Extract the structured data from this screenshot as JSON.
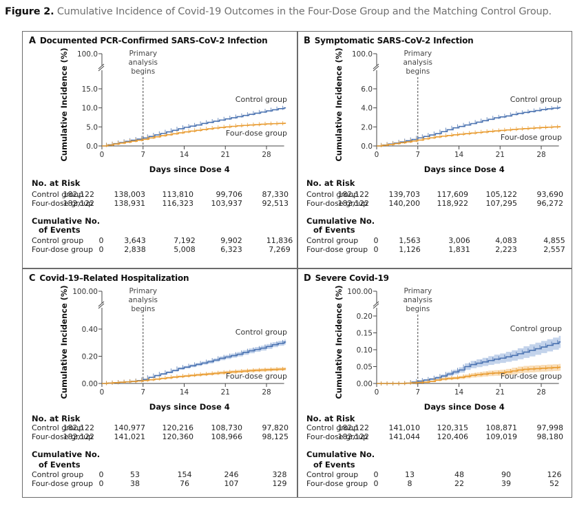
{
  "figure": {
    "label": "Figure 2.",
    "title": "Cumulative Incidence of Covid-19 Outcomes in the Four-Dose Group and the Matching Control Group."
  },
  "colors": {
    "control": "#4a72b0",
    "control_band": "#a9c0e2",
    "fourdose": "#e89a2e",
    "fourdose_band": "#f6cf98",
    "axis": "#444444",
    "frame": "#6b6b6b"
  },
  "chart_data": [
    {
      "type": "line",
      "panel": "A",
      "title": "Documented PCR-Confirmed SARS-CoV-2 Infection",
      "xlabel": "Days since Dose 4",
      "ylabel": "Cumulative Incidence (%)",
      "xticks": [
        0,
        7,
        14,
        21,
        28
      ],
      "xlim": [
        0,
        31
      ],
      "yticks": [
        "0.0",
        "5.0",
        "10.0",
        "15.0"
      ],
      "ytick_values": [
        0,
        5,
        10,
        15
      ],
      "ylim": [
        0,
        15
      ],
      "ytop_label": "100.0",
      "axis_break": true,
      "vline": {
        "x": 7,
        "label": [
          "Primary",
          "analysis",
          "begins"
        ]
      },
      "confidence_bands": false,
      "series": [
        {
          "name": "Control group",
          "key": "control",
          "x": [
            0,
            1,
            2,
            3,
            4,
            5,
            6,
            7,
            8,
            9,
            10,
            11,
            12,
            13,
            14,
            15,
            16,
            17,
            18,
            19,
            20,
            21,
            22,
            23,
            24,
            25,
            26,
            27,
            28,
            29,
            30,
            31
          ],
          "y": [
            0,
            0.3,
            0.6,
            0.9,
            1.2,
            1.5,
            1.8,
            2.1,
            2.5,
            2.9,
            3.3,
            3.7,
            4.1,
            4.5,
            4.9,
            5.2,
            5.5,
            5.9,
            6.2,
            6.5,
            6.8,
            7.1,
            7.4,
            7.7,
            8.0,
            8.3,
            8.6,
            8.9,
            9.2,
            9.5,
            9.8,
            10.0
          ]
        },
        {
          "name": "Four-dose group",
          "key": "fourdose",
          "x": [
            0,
            1,
            2,
            3,
            4,
            5,
            6,
            7,
            8,
            9,
            10,
            11,
            12,
            13,
            14,
            15,
            16,
            17,
            18,
            19,
            20,
            21,
            22,
            23,
            24,
            25,
            26,
            27,
            28,
            29,
            30,
            31
          ],
          "y": [
            0,
            0.25,
            0.5,
            0.75,
            1.0,
            1.25,
            1.5,
            1.75,
            2.1,
            2.4,
            2.7,
            2.95,
            3.2,
            3.45,
            3.7,
            3.9,
            4.1,
            4.3,
            4.5,
            4.7,
            4.85,
            5.0,
            5.15,
            5.3,
            5.4,
            5.5,
            5.6,
            5.7,
            5.8,
            5.85,
            5.9,
            5.95
          ]
        }
      ],
      "series_labels": {
        "control": "Control group",
        "fourdose": "Four-dose group"
      },
      "risk_table": {
        "at_risk_header": "No. at Risk",
        "events_header": [
          "Cumulative No.",
          "of Events"
        ],
        "rows_at_risk": [
          {
            "name": "Control group",
            "values": [
              "182,122",
              "138,003",
              "113,810",
              "99,706",
              "87,330"
            ]
          },
          {
            "name": "Four-dose group",
            "values": [
              "182,122",
              "138,931",
              "116,323",
              "103,937",
              "92,513"
            ]
          }
        ],
        "rows_events": [
          {
            "name": "Control group",
            "values": [
              "0",
              "3,643",
              "7,192",
              "9,902",
              "11,836"
            ]
          },
          {
            "name": "Four-dose group",
            "values": [
              "0",
              "2,838",
              "5,008",
              "6,323",
              "7,269"
            ]
          }
        ]
      }
    },
    {
      "type": "line",
      "panel": "B",
      "title": "Symptomatic SARS-CoV-2 Infection",
      "xlabel": "Days since Dose 4",
      "ylabel": "Cumulative Incidence (%)",
      "xticks": [
        0,
        7,
        14,
        21,
        28
      ],
      "xlim": [
        0,
        31
      ],
      "yticks": [
        "0.0",
        "2.0",
        "4.0",
        "6.0"
      ],
      "ytick_values": [
        0,
        2,
        4,
        6
      ],
      "ylim": [
        0,
        6
      ],
      "ytop_label": "100.0",
      "axis_break": true,
      "vline": {
        "x": 7,
        "label": [
          "Primary",
          "analysis",
          "begins"
        ]
      },
      "confidence_bands": false,
      "series": [
        {
          "name": "Control group",
          "key": "control",
          "x": [
            0,
            1,
            2,
            3,
            4,
            5,
            6,
            7,
            8,
            9,
            10,
            11,
            12,
            13,
            14,
            15,
            16,
            17,
            18,
            19,
            20,
            21,
            22,
            23,
            24,
            25,
            26,
            27,
            28,
            29,
            30,
            31
          ],
          "y": [
            0,
            0.1,
            0.2,
            0.3,
            0.42,
            0.55,
            0.68,
            0.85,
            1.0,
            1.15,
            1.3,
            1.5,
            1.7,
            1.9,
            2.05,
            2.2,
            2.35,
            2.5,
            2.65,
            2.8,
            2.95,
            3.05,
            3.15,
            3.3,
            3.42,
            3.52,
            3.62,
            3.72,
            3.82,
            3.9,
            3.97,
            4.03
          ]
        },
        {
          "name": "Four-dose group",
          "key": "fourdose",
          "x": [
            0,
            1,
            2,
            3,
            4,
            5,
            6,
            7,
            8,
            9,
            10,
            11,
            12,
            13,
            14,
            15,
            16,
            17,
            18,
            19,
            20,
            21,
            22,
            23,
            24,
            25,
            26,
            27,
            28,
            29,
            30,
            31
          ],
          "y": [
            0,
            0.08,
            0.16,
            0.25,
            0.34,
            0.43,
            0.52,
            0.62,
            0.75,
            0.85,
            0.95,
            1.03,
            1.1,
            1.17,
            1.23,
            1.29,
            1.35,
            1.41,
            1.47,
            1.53,
            1.58,
            1.63,
            1.68,
            1.73,
            1.78,
            1.82,
            1.86,
            1.9,
            1.94,
            1.97,
            2.0,
            2.02
          ]
        }
      ],
      "series_labels": {
        "control": "Control group",
        "fourdose": "Four-dose group"
      },
      "risk_table": {
        "at_risk_header": "No. at Risk",
        "events_header": [
          "Cumulative No.",
          "of Events"
        ],
        "rows_at_risk": [
          {
            "name": "Control group",
            "values": [
              "182,122",
              "139,703",
              "117,609",
              "105,122",
              "93,690"
            ]
          },
          {
            "name": "Four-dose group",
            "values": [
              "182,122",
              "140,200",
              "118,922",
              "107,295",
              "96,272"
            ]
          }
        ],
        "rows_events": [
          {
            "name": "Control group",
            "values": [
              "0",
              "1,563",
              "3,006",
              "4,083",
              "4,855"
            ]
          },
          {
            "name": "Four-dose group",
            "values": [
              "0",
              "1,126",
              "1,831",
              "2,223",
              "2,557"
            ]
          }
        ]
      }
    },
    {
      "type": "line",
      "panel": "C",
      "title": "Covid-19–Related Hospitalization",
      "xlabel": "Days since Dose 4",
      "ylabel": "Cumulative Incidence (%)",
      "xticks": [
        0,
        7,
        14,
        21,
        28
      ],
      "xlim": [
        0,
        31
      ],
      "yticks": [
        "0.00",
        "0.20",
        "0.40"
      ],
      "ytick_values": [
        0,
        0.2,
        0.4
      ],
      "ylim": [
        0,
        0.5
      ],
      "ytop_label": "100.00",
      "axis_break": true,
      "vline": {
        "x": 7,
        "label": [
          "Primary",
          "analysis",
          "begins"
        ]
      },
      "confidence_bands": true,
      "series": [
        {
          "name": "Control group",
          "key": "control",
          "x": [
            0,
            1,
            2,
            3,
            4,
            5,
            6,
            7,
            8,
            9,
            10,
            11,
            12,
            13,
            14,
            15,
            16,
            17,
            18,
            19,
            20,
            21,
            22,
            23,
            24,
            25,
            26,
            27,
            28,
            29,
            30,
            31
          ],
          "y": [
            0,
            0.003,
            0.006,
            0.009,
            0.012,
            0.016,
            0.021,
            0.03,
            0.045,
            0.058,
            0.07,
            0.082,
            0.095,
            0.11,
            0.12,
            0.13,
            0.14,
            0.15,
            0.16,
            0.172,
            0.185,
            0.195,
            0.205,
            0.215,
            0.228,
            0.24,
            0.25,
            0.26,
            0.272,
            0.285,
            0.295,
            0.305
          ],
          "band": 0.018
        },
        {
          "name": "Four-dose group",
          "key": "fourdose",
          "x": [
            0,
            1,
            2,
            3,
            4,
            5,
            6,
            7,
            8,
            9,
            10,
            11,
            12,
            13,
            14,
            15,
            16,
            17,
            18,
            19,
            20,
            21,
            22,
            23,
            24,
            25,
            26,
            27,
            28,
            29,
            30,
            31
          ],
          "y": [
            0,
            0.003,
            0.006,
            0.009,
            0.012,
            0.015,
            0.018,
            0.022,
            0.027,
            0.032,
            0.037,
            0.042,
            0.047,
            0.051,
            0.055,
            0.059,
            0.063,
            0.067,
            0.07,
            0.074,
            0.078,
            0.082,
            0.085,
            0.088,
            0.091,
            0.094,
            0.097,
            0.099,
            0.101,
            0.103,
            0.105,
            0.107
          ],
          "band": 0.012
        }
      ],
      "series_labels": {
        "control": "Control group",
        "fourdose": "Four-dose group"
      },
      "risk_table": {
        "at_risk_header": "No. at Risk",
        "events_header": [
          "Cumulative No.",
          "of Events"
        ],
        "rows_at_risk": [
          {
            "name": "Control group",
            "values": [
              "182,122",
              "140,977",
              "120,216",
              "108,730",
              "97,820"
            ]
          },
          {
            "name": "Four-dose group",
            "values": [
              "182,122",
              "141,021",
              "120,360",
              "108,966",
              "98,125"
            ]
          }
        ],
        "rows_events": [
          {
            "name": "Control group",
            "values": [
              "0",
              "53",
              "154",
              "246",
              "328"
            ]
          },
          {
            "name": "Four-dose group",
            "values": [
              "0",
              "38",
              "76",
              "107",
              "129"
            ]
          }
        ]
      }
    },
    {
      "type": "line",
      "panel": "D",
      "title": "Severe Covid-19",
      "xlabel": "Days since Dose 4",
      "ylabel": "Cumulative Incidence (%)",
      "xticks": [
        0,
        7,
        14,
        21,
        28
      ],
      "xlim": [
        0,
        31
      ],
      "yticks": [
        "0.00",
        "0.05",
        "0.10",
        "0.15",
        "0.20"
      ],
      "ytick_values": [
        0,
        0.05,
        0.1,
        0.15,
        0.2
      ],
      "ylim": [
        0,
        0.21
      ],
      "ytop_label": "100.00",
      "axis_break": true,
      "vline": {
        "x": 7,
        "label": [
          "Primary",
          "analysis",
          "begins"
        ]
      },
      "confidence_bands": true,
      "series": [
        {
          "name": "Control group",
          "key": "control",
          "x": [
            0,
            1,
            2,
            3,
            4,
            5,
            6,
            7,
            8,
            9,
            10,
            11,
            12,
            13,
            14,
            15,
            16,
            17,
            18,
            19,
            20,
            21,
            22,
            23,
            24,
            25,
            26,
            27,
            28,
            29,
            30,
            31
          ],
          "y": [
            0,
            0,
            0,
            0,
            0,
            0.001,
            0.004,
            0.007,
            0.01,
            0.013,
            0.017,
            0.022,
            0.028,
            0.034,
            0.04,
            0.05,
            0.056,
            0.06,
            0.064,
            0.068,
            0.072,
            0.075,
            0.079,
            0.083,
            0.088,
            0.093,
            0.098,
            0.103,
            0.108,
            0.113,
            0.118,
            0.123
          ],
          "band": 0.018
        },
        {
          "name": "Four-dose group",
          "key": "fourdose",
          "x": [
            0,
            1,
            2,
            3,
            4,
            5,
            6,
            7,
            8,
            9,
            10,
            11,
            12,
            13,
            14,
            15,
            16,
            17,
            18,
            19,
            20,
            21,
            22,
            23,
            24,
            25,
            26,
            27,
            28,
            29,
            30,
            31
          ],
          "y": [
            0,
            0,
            0,
            0,
            0,
            0.001,
            0.002,
            0.003,
            0.004,
            0.006,
            0.01,
            0.013,
            0.015,
            0.016,
            0.018,
            0.021,
            0.024,
            0.026,
            0.028,
            0.03,
            0.031,
            0.032,
            0.034,
            0.037,
            0.04,
            0.042,
            0.043,
            0.044,
            0.045,
            0.046,
            0.047,
            0.048
          ],
          "band": 0.01
        }
      ],
      "series_labels": {
        "control": "Control group",
        "fourdose": "Four-dose group"
      },
      "risk_table": {
        "at_risk_header": "No. at Risk",
        "events_header": [
          "Cumulative No.",
          "of Events"
        ],
        "rows_at_risk": [
          {
            "name": "Control group",
            "values": [
              "182,122",
              "141,010",
              "120,315",
              "108,871",
              "97,998"
            ]
          },
          {
            "name": "Four-dose group",
            "values": [
              "182,122",
              "141,044",
              "120,406",
              "109,019",
              "98,180"
            ]
          }
        ],
        "rows_events": [
          {
            "name": "Control group",
            "values": [
              "0",
              "13",
              "48",
              "90",
              "126"
            ]
          },
          {
            "name": "Four-dose group",
            "values": [
              "0",
              "8",
              "22",
              "39",
              "52"
            ]
          }
        ]
      }
    }
  ]
}
